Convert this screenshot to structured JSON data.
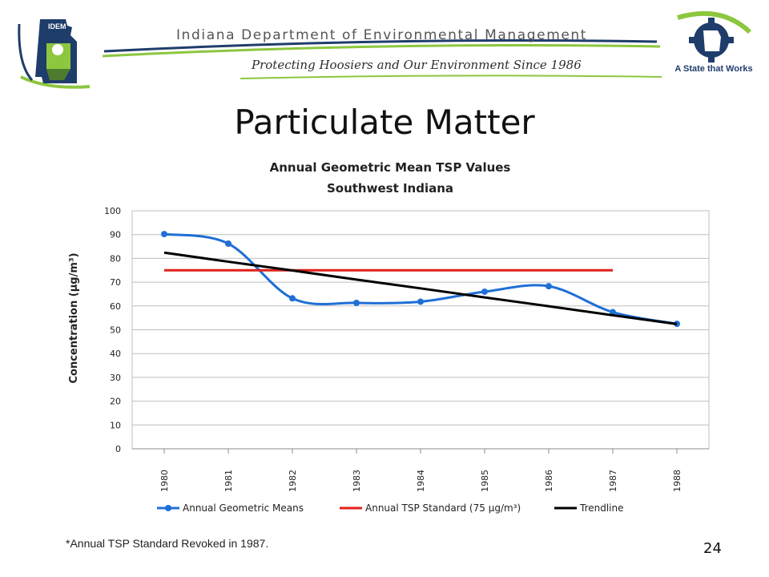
{
  "banner": {
    "org_name": "Indiana Department of Environmental Management",
    "tagline": "Protecting Hoosiers and Our Environment Since 1986",
    "left_logo_text": "IDEM",
    "right_logo_text": "A State that Works",
    "colors": {
      "green": "#8dc63f",
      "blue": "#1f3d6b",
      "gray": "#555555"
    }
  },
  "slide": {
    "title": "Particulate Matter",
    "footnote": "*Annual TSP Standard Revoked in 1987.",
    "page_number": "24"
  },
  "chart_data": {
    "type": "line",
    "title": "Annual Geometric Mean TSP Values",
    "subtitle": "Southwest Indiana",
    "xlabel": "",
    "ylabel": "Concentration (µg/m³)",
    "categories": [
      "1980",
      "1981",
      "1982",
      "1983",
      "1984",
      "1985",
      "1986",
      "1987",
      "1988"
    ],
    "ylim": [
      0,
      100
    ],
    "yticks": [
      0,
      10,
      20,
      30,
      40,
      50,
      60,
      70,
      80,
      90,
      100
    ],
    "grid": true,
    "legend_position": "bottom",
    "series": [
      {
        "name": "Annual Geometric Means",
        "color": "#1f6fd6",
        "markers": true,
        "smooth": true,
        "values": [
          90.2,
          86.2,
          63.2,
          61.3,
          61.8,
          66.0,
          68.3,
          57.4,
          52.5
        ]
      },
      {
        "name": "Annual TSP Standard (75 µg/m³)",
        "color": "#e0201b",
        "markers": false,
        "smooth": false,
        "values": [
          75,
          75,
          75,
          75,
          75,
          75,
          75,
          75,
          null
        ]
      },
      {
        "name": "Trendline",
        "color": "#000000",
        "markers": false,
        "smooth": false,
        "values": [
          82.4,
          78.6,
          74.9,
          71.1,
          67.4,
          63.6,
          59.9,
          56.1,
          52.4
        ]
      }
    ]
  }
}
